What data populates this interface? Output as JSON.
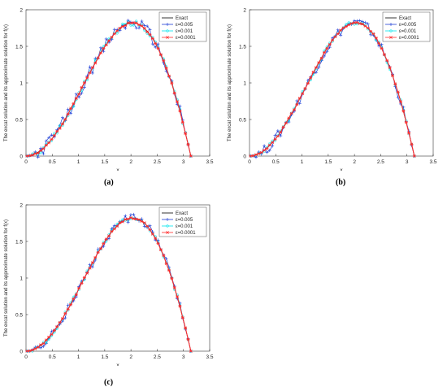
{
  "chart_data": [
    {
      "type": "line",
      "panel": "(a)",
      "xlabel": "x",
      "ylabel": "The excat solution and its approximate solution for f(x)",
      "xlim": [
        0,
        3.5
      ],
      "ylim": [
        0,
        2
      ],
      "xticks": [
        "0",
        "0.5",
        "1",
        "1.5",
        "2",
        "2.5",
        "3",
        "3.5"
      ],
      "yticks": [
        "0",
        "0.5",
        "1",
        "1.5",
        "2"
      ],
      "legend_position": "top-right",
      "noise_amplitude": [
        0.08,
        0.035,
        0.012
      ],
      "series": [
        {
          "name": "Exact",
          "color": "#000000"
        },
        {
          "name": "ε=0.005",
          "color": "#1f3fd6"
        },
        {
          "name": "ε=0.001",
          "color": "#00e5ee"
        },
        {
          "name": "ε=0.0001",
          "color": "#ff2a2a"
        }
      ]
    },
    {
      "type": "line",
      "panel": "(b)",
      "xlabel": "x",
      "ylabel": "The excat solution and its approximate solution for f(x)",
      "xlim": [
        0,
        3.5
      ],
      "ylim": [
        0,
        2
      ],
      "xticks": [
        "0",
        "0.5",
        "1",
        "1.5",
        "2",
        "2.5",
        "3",
        "3.5"
      ],
      "yticks": [
        "0",
        "0.5",
        "1",
        "1.5",
        "2"
      ],
      "legend_position": "top-right",
      "noise_amplitude": [
        0.07,
        0.03,
        0.01
      ],
      "series": [
        {
          "name": "Exact",
          "color": "#000000"
        },
        {
          "name": "ε=0.005",
          "color": "#1f3fd6"
        },
        {
          "name": "ε=0.001",
          "color": "#00e5ee"
        },
        {
          "name": "ε=0.0001",
          "color": "#ff2a2a"
        }
      ]
    },
    {
      "type": "line",
      "panel": "(c)",
      "xlabel": "x",
      "ylabel": "The excat solution and its approximate solution for f(x)",
      "xlim": [
        0,
        3.5
      ],
      "ylim": [
        0,
        2
      ],
      "xticks": [
        "0",
        "0.5",
        "1",
        "1.5",
        "2",
        "2.5",
        "3",
        "3.5"
      ],
      "yticks": [
        "0",
        "0.5",
        "1",
        "1.5",
        "2"
      ],
      "legend_position": "top-right",
      "noise_amplitude": [
        0.06,
        0.03,
        0.01
      ],
      "series": [
        {
          "name": "Exact",
          "color": "#000000"
        },
        {
          "name": "ε=0.005",
          "color": "#1f3fd6"
        },
        {
          "name": "ε=0.001",
          "color": "#00e5ee"
        },
        {
          "name": "ε=0.0001",
          "color": "#ff2a2a"
        }
      ]
    }
  ]
}
